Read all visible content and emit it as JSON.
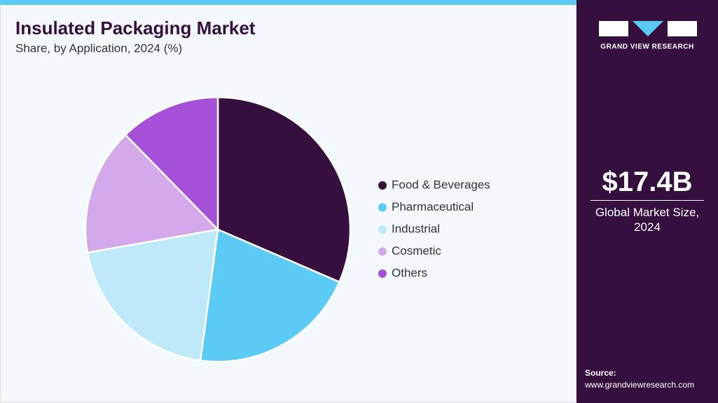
{
  "chart_data": {
    "type": "pie",
    "title": "Insulated Packaging Market",
    "subtitle": "Share, by Application, 2024 (%)",
    "categories": [
      "Food & Beverages",
      "Pharmaceutical",
      "Industrial",
      "Cosmetic",
      "Others"
    ],
    "values": [
      31.5,
      20.6,
      20.1,
      15.5,
      12.3
    ],
    "colors": [
      "#35103f",
      "#5bcbf5",
      "#bde9f9",
      "#d3a9ec",
      "#a450d8"
    ]
  },
  "sidebar": {
    "brand": "GRAND VIEW RESEARCH",
    "market_size": "$17.4B",
    "market_size_label": "Global Market Size, 2024",
    "source_label": "Source:",
    "source_url": "www.grandviewresearch.com"
  }
}
